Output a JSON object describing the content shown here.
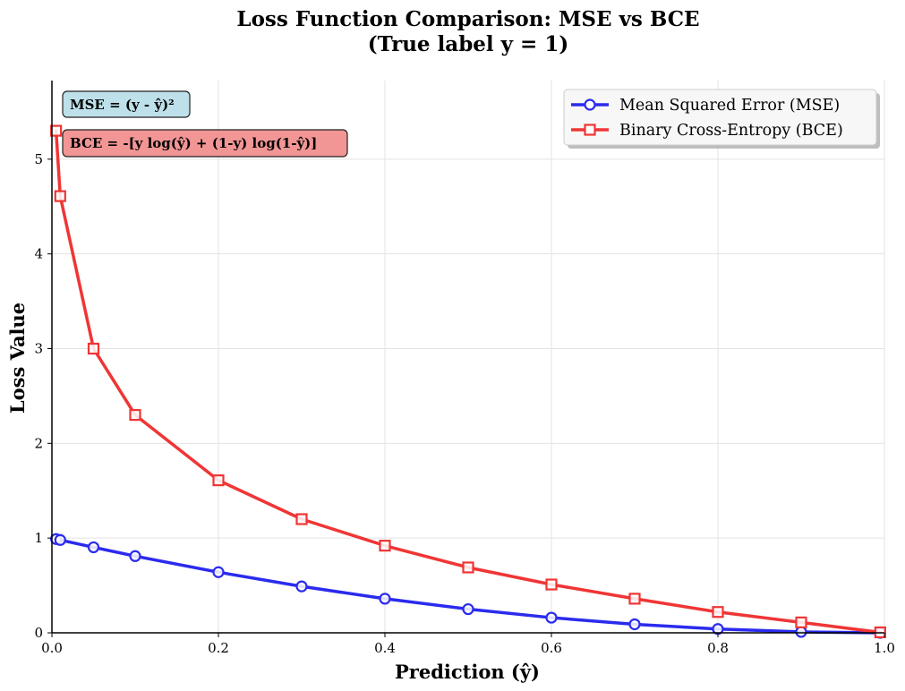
{
  "chart_data": {
    "type": "line",
    "title_line1": "Loss Function Comparison: MSE vs BCE",
    "title_line2": "(True label y = 1)",
    "xlabel": "Prediction (ŷ)",
    "ylabel": "Loss Value",
    "xlim": [
      0,
      1
    ],
    "ylim": [
      0,
      5.83
    ],
    "xticks": [
      0.0,
      0.2,
      0.4,
      0.6,
      0.8,
      1.0
    ],
    "xtick_labels": [
      "0.0",
      "0.2",
      "0.4",
      "0.6",
      "0.8",
      "1.0"
    ],
    "yticks": [
      0,
      1,
      2,
      3,
      4,
      5
    ],
    "ytick_labels": [
      "0",
      "1",
      "2",
      "3",
      "4",
      "5"
    ],
    "grid": true,
    "legend_position": "top-right",
    "series": [
      {
        "name": "Mean Squared Error (MSE)",
        "color": "#2b2bee",
        "marker": "circle",
        "x": [
          0.005,
          0.01,
          0.05,
          0.1,
          0.2,
          0.3,
          0.4,
          0.5,
          0.6,
          0.7,
          0.8,
          0.9,
          0.995
        ],
        "y": [
          0.99,
          0.98,
          0.903,
          0.81,
          0.64,
          0.49,
          0.36,
          0.25,
          0.16,
          0.09,
          0.04,
          0.01,
          0.0
        ]
      },
      {
        "name": "Binary Cross-Entropy (BCE)",
        "color": "#f03535",
        "marker": "square",
        "x": [
          0.005,
          0.01,
          0.05,
          0.1,
          0.2,
          0.3,
          0.4,
          0.5,
          0.6,
          0.7,
          0.8,
          0.9,
          0.995
        ],
        "y": [
          5.3,
          4.61,
          3.0,
          2.3,
          1.61,
          1.2,
          0.92,
          0.69,
          0.51,
          0.36,
          0.22,
          0.11,
          0.005
        ]
      }
    ],
    "annotations": [
      {
        "text": "MSE = (y - ŷ)²",
        "color": "#bde0ea"
      },
      {
        "text": "BCE = -[y log(ŷ) + (1-y) log(1-ŷ)]",
        "color": "#f29595"
      }
    ]
  }
}
